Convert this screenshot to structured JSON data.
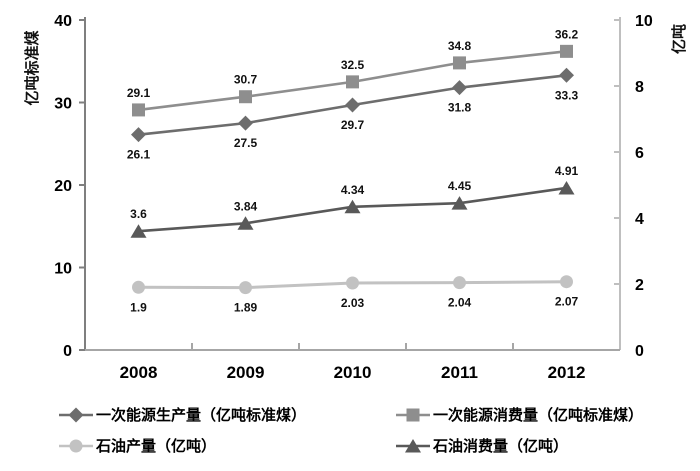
{
  "chart_data": {
    "type": "line",
    "categories": [
      "2008",
      "2009",
      "2010",
      "2011",
      "2012"
    ],
    "series": [
      {
        "name": "一次能源生产量（亿吨标准煤）",
        "axis": "left",
        "marker": "diamond",
        "color": "#6d6d6d",
        "values": [
          26.1,
          27.5,
          29.7,
          31.8,
          33.3
        ],
        "label_position": "below"
      },
      {
        "name": "一次能源消费量（亿吨标准煤）",
        "axis": "left",
        "marker": "square",
        "color": "#8e8e8e",
        "values": [
          29.1,
          30.7,
          32.5,
          34.8,
          36.2
        ],
        "label_position": "above"
      },
      {
        "name": "石油产量（亿吨）",
        "axis": "right",
        "marker": "circle",
        "color": "#c2c2c2",
        "values": [
          1.9,
          1.89,
          2.03,
          2.04,
          2.07
        ],
        "label_position": "below"
      },
      {
        "name": "石油消费量（亿吨）",
        "axis": "right",
        "marker": "triangle",
        "color": "#595959",
        "values": [
          3.6,
          3.84,
          4.34,
          4.45,
          4.91
        ],
        "label_position": "above"
      }
    ],
    "left_axis": {
      "label": "亿吨标准煤",
      "ticks": [
        0,
        10,
        20,
        30,
        40
      ],
      "range": [
        0,
        40
      ]
    },
    "right_axis": {
      "label": "亿吨",
      "ticks": [
        0,
        2,
        4,
        6,
        8,
        10
      ],
      "range": [
        0,
        10
      ]
    },
    "legend_position": "bottom",
    "grid": false,
    "axis_colors": {
      "left_line": "#7f7f7f",
      "right_line": "#bfbfbf",
      "bottom_line": "#a6a6a6"
    }
  }
}
